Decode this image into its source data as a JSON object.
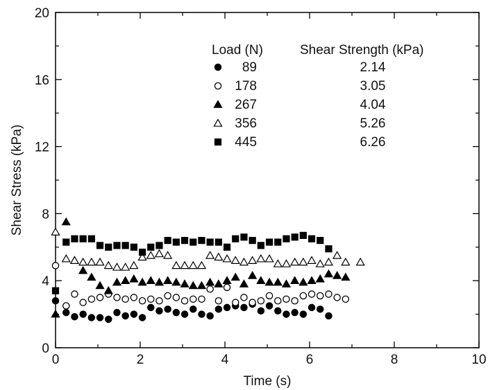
{
  "chart_data": {
    "type": "scatter",
    "xlabel": "Time (s)",
    "ylabel": "Shear Stress (kPa)",
    "xlim": [
      0,
      10
    ],
    "ylim": [
      0,
      20
    ],
    "xticks": [
      0,
      2,
      4,
      6,
      8,
      10
    ],
    "yticks": [
      0,
      4,
      8,
      12,
      16,
      20
    ],
    "grid": false,
    "legend": {
      "placement": "top-right",
      "header_load": "Load (N)",
      "header_strength": "Shear Strength (kPa)"
    },
    "series": [
      {
        "name": "89",
        "strength": "2.14",
        "marker": "filled-circle",
        "points": [
          [
            0.0,
            2.8
          ],
          [
            0.25,
            2.1
          ],
          [
            0.45,
            1.85
          ],
          [
            0.65,
            2.0
          ],
          [
            0.85,
            1.8
          ],
          [
            1.05,
            1.8
          ],
          [
            1.25,
            1.7
          ],
          [
            1.45,
            2.1
          ],
          [
            1.65,
            1.9
          ],
          [
            1.85,
            2.0
          ],
          [
            2.05,
            1.8
          ],
          [
            2.25,
            2.4
          ],
          [
            2.45,
            2.2
          ],
          [
            2.65,
            2.3
          ],
          [
            2.85,
            2.1
          ],
          [
            3.05,
            2.0
          ],
          [
            3.25,
            2.3
          ],
          [
            3.45,
            2.0
          ],
          [
            3.65,
            1.9
          ],
          [
            3.85,
            2.3
          ],
          [
            4.05,
            2.4
          ],
          [
            4.25,
            2.5
          ],
          [
            4.45,
            2.4
          ],
          [
            4.65,
            2.6
          ],
          [
            4.85,
            2.2
          ],
          [
            5.05,
            2.5
          ],
          [
            5.25,
            2.2
          ],
          [
            5.45,
            2.0
          ],
          [
            5.65,
            2.1
          ],
          [
            5.85,
            2.0
          ],
          [
            6.05,
            2.4
          ],
          [
            6.25,
            2.3
          ],
          [
            6.45,
            1.9
          ]
        ]
      },
      {
        "name": "178",
        "strength": "3.05",
        "marker": "open-circle",
        "points": [
          [
            0.0,
            4.9
          ],
          [
            0.25,
            2.5
          ],
          [
            0.45,
            3.2
          ],
          [
            0.65,
            2.7
          ],
          [
            0.85,
            2.9
          ],
          [
            1.05,
            3.0
          ],
          [
            1.25,
            3.2
          ],
          [
            1.45,
            3.0
          ],
          [
            1.65,
            2.9
          ],
          [
            1.85,
            3.0
          ],
          [
            2.05,
            2.8
          ],
          [
            2.25,
            2.9
          ],
          [
            2.45,
            2.8
          ],
          [
            2.65,
            3.1
          ],
          [
            2.85,
            3.0
          ],
          [
            3.05,
            2.8
          ],
          [
            3.25,
            2.9
          ],
          [
            3.45,
            2.9
          ],
          [
            3.65,
            3.5
          ],
          [
            3.85,
            2.8
          ],
          [
            4.05,
            3.6
          ],
          [
            4.25,
            2.7
          ],
          [
            4.45,
            3.0
          ],
          [
            4.65,
            2.7
          ],
          [
            4.85,
            2.8
          ],
          [
            5.05,
            3.1
          ],
          [
            5.25,
            2.8
          ],
          [
            5.45,
            2.9
          ],
          [
            5.65,
            2.8
          ],
          [
            5.85,
            3.1
          ],
          [
            6.05,
            3.2
          ],
          [
            6.25,
            3.1
          ],
          [
            6.45,
            3.2
          ],
          [
            6.65,
            3.0
          ],
          [
            6.85,
            2.9
          ]
        ]
      },
      {
        "name": "267",
        "strength": "4.04",
        "marker": "filled-triangle",
        "points": [
          [
            0.0,
            2.0
          ],
          [
            0.25,
            7.5
          ],
          [
            0.45,
            5.2
          ],
          [
            0.65,
            4.6
          ],
          [
            0.85,
            4.2
          ],
          [
            1.05,
            3.7
          ],
          [
            1.25,
            3.4
          ],
          [
            1.45,
            3.9
          ],
          [
            1.65,
            4.0
          ],
          [
            1.85,
            4.1
          ],
          [
            2.05,
            3.9
          ],
          [
            2.25,
            4.0
          ],
          [
            2.45,
            3.9
          ],
          [
            2.65,
            4.0
          ],
          [
            2.85,
            3.9
          ],
          [
            3.05,
            3.8
          ],
          [
            3.25,
            3.7
          ],
          [
            3.45,
            3.7
          ],
          [
            3.65,
            3.9
          ],
          [
            3.85,
            3.8
          ],
          [
            4.05,
            4.0
          ],
          [
            4.25,
            4.2
          ],
          [
            4.45,
            3.8
          ],
          [
            4.65,
            4.3
          ],
          [
            4.85,
            4.0
          ],
          [
            5.05,
            3.9
          ],
          [
            5.25,
            3.9
          ],
          [
            5.45,
            3.8
          ],
          [
            5.65,
            4.0
          ],
          [
            5.85,
            3.9
          ],
          [
            6.05,
            4.0
          ],
          [
            6.25,
            4.1
          ],
          [
            6.45,
            4.4
          ],
          [
            6.65,
            4.3
          ],
          [
            6.85,
            4.2
          ]
        ]
      },
      {
        "name": "356",
        "strength": "5.26",
        "marker": "open-triangle",
        "points": [
          [
            0.0,
            6.9
          ],
          [
            0.25,
            5.3
          ],
          [
            0.45,
            5.2
          ],
          [
            0.65,
            5.1
          ],
          [
            0.85,
            5.1
          ],
          [
            1.05,
            5.1
          ],
          [
            1.25,
            4.9
          ],
          [
            1.45,
            4.8
          ],
          [
            1.65,
            4.8
          ],
          [
            1.85,
            4.9
          ],
          [
            2.05,
            5.4
          ],
          [
            2.25,
            5.5
          ],
          [
            2.45,
            5.6
          ],
          [
            2.65,
            5.5
          ],
          [
            2.85,
            4.9
          ],
          [
            3.05,
            4.9
          ],
          [
            3.25,
            4.9
          ],
          [
            3.45,
            4.9
          ],
          [
            3.65,
            5.5
          ],
          [
            3.85,
            5.4
          ],
          [
            4.05,
            5.3
          ],
          [
            4.25,
            5.2
          ],
          [
            4.45,
            5.1
          ],
          [
            4.65,
            5.2
          ],
          [
            4.85,
            5.3
          ],
          [
            5.05,
            5.3
          ],
          [
            5.25,
            5.0
          ],
          [
            5.45,
            5.0
          ],
          [
            5.65,
            5.1
          ],
          [
            5.85,
            5.1
          ],
          [
            6.05,
            5.2
          ],
          [
            6.25,
            5.0
          ],
          [
            6.45,
            5.1
          ],
          [
            6.65,
            5.5
          ],
          [
            6.85,
            5.1
          ],
          [
            7.2,
            5.1
          ]
        ]
      },
      {
        "name": "445",
        "strength": "6.26",
        "marker": "filled-square",
        "points": [
          [
            0.0,
            3.4
          ],
          [
            0.25,
            6.3
          ],
          [
            0.45,
            6.5
          ],
          [
            0.65,
            6.5
          ],
          [
            0.85,
            6.5
          ],
          [
            1.05,
            6.1
          ],
          [
            1.25,
            6.0
          ],
          [
            1.45,
            6.1
          ],
          [
            1.65,
            6.1
          ],
          [
            1.85,
            6.0
          ],
          [
            2.05,
            5.7
          ],
          [
            2.25,
            6.0
          ],
          [
            2.45,
            6.1
          ],
          [
            2.65,
            6.4
          ],
          [
            2.85,
            6.3
          ],
          [
            3.05,
            6.4
          ],
          [
            3.25,
            6.3
          ],
          [
            3.45,
            6.4
          ],
          [
            3.65,
            6.3
          ],
          [
            3.85,
            6.3
          ],
          [
            4.05,
            6.0
          ],
          [
            4.25,
            6.5
          ],
          [
            4.45,
            6.6
          ],
          [
            4.65,
            6.4
          ],
          [
            4.85,
            6.1
          ],
          [
            5.05,
            6.3
          ],
          [
            5.25,
            6.3
          ],
          [
            5.45,
            6.5
          ],
          [
            5.65,
            6.6
          ],
          [
            5.85,
            6.7
          ],
          [
            6.05,
            6.5
          ],
          [
            6.25,
            6.4
          ],
          [
            6.45,
            5.9
          ]
        ]
      }
    ]
  }
}
